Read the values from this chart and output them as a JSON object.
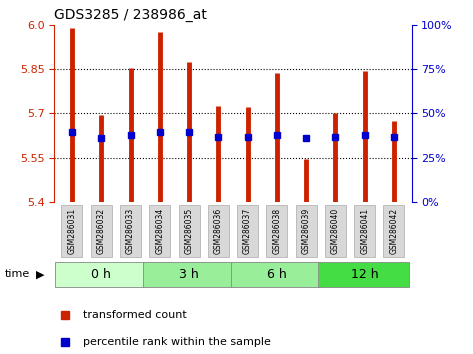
{
  "title": "GDS3285 / 238986_at",
  "samples": [
    "GSM286031",
    "GSM286032",
    "GSM286033",
    "GSM286034",
    "GSM286035",
    "GSM286036",
    "GSM286037",
    "GSM286038",
    "GSM286039",
    "GSM286040",
    "GSM286041",
    "GSM286042"
  ],
  "bar_tops": [
    5.99,
    5.695,
    5.855,
    5.975,
    5.875,
    5.725,
    5.72,
    5.835,
    5.545,
    5.7,
    5.845,
    5.675
  ],
  "bar_bottoms": [
    5.4,
    5.4,
    5.4,
    5.4,
    5.4,
    5.4,
    5.4,
    5.4,
    5.4,
    5.4,
    5.4,
    5.4
  ],
  "percentile_values": [
    5.635,
    5.615,
    5.625,
    5.635,
    5.635,
    5.62,
    5.62,
    5.625,
    5.615,
    5.62,
    5.625,
    5.62
  ],
  "ylim": [
    5.4,
    6.0
  ],
  "yticks_left": [
    5.4,
    5.55,
    5.7,
    5.85,
    6.0
  ],
  "yticks_right_pct": [
    0,
    25,
    50,
    75,
    100
  ],
  "bar_color": "#cc2200",
  "percentile_color": "#0000cc",
  "grid_color": "#000000",
  "left_tick_color": "#cc2200",
  "right_tick_color": "#0000cc",
  "bar_linewidth": 3.5,
  "time_groups": [
    {
      "label": "0 h",
      "n_samples": 3,
      "color": "#ccffcc"
    },
    {
      "label": "3 h",
      "n_samples": 3,
      "color": "#99ee99"
    },
    {
      "label": "6 h",
      "n_samples": 3,
      "color": "#99ee99"
    },
    {
      "label": "12 h",
      "n_samples": 3,
      "color": "#44dd44"
    }
  ],
  "sample_box_color": "#d8d8d8",
  "sample_box_edge": "#aaaaaa",
  "legend_items": [
    "transformed count",
    "percentile rank within the sample"
  ],
  "legend_colors": [
    "#cc2200",
    "#0000cc"
  ]
}
